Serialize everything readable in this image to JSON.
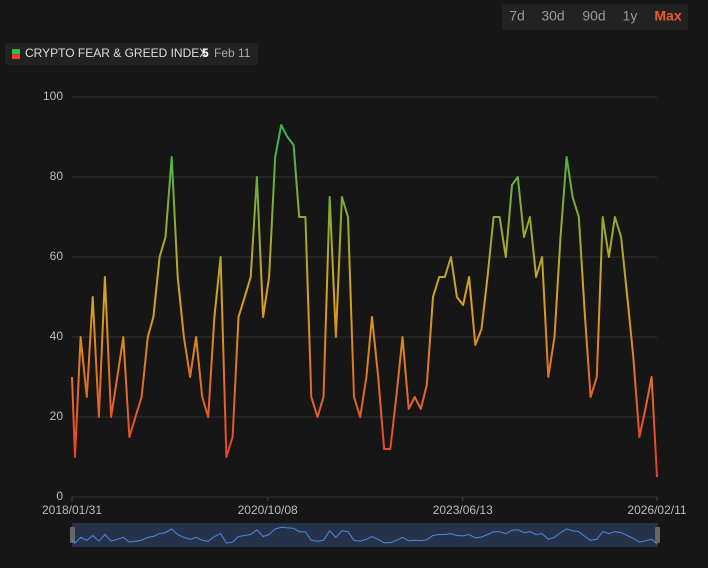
{
  "chart_data": {
    "type": "line",
    "title": "CRYPTO FEAR & GREED INDEX",
    "current_date": "Feb 11",
    "ranges": [
      "7d",
      "30d",
      "90d",
      "1y",
      "Max"
    ],
    "active_range": 4,
    "x": [
      "2018/01/31",
      "2018/02/15",
      "2018/03/15",
      "2018/04/15",
      "2018/05/15",
      "2018/06/15",
      "2018/07/15",
      "2018/08/15",
      "2018/09/15",
      "2018/10/15",
      "2018/11/15",
      "2018/12/15",
      "2019/01/15",
      "2019/02/15",
      "2019/03/15",
      "2019/04/15",
      "2019/05/15",
      "2019/06/15",
      "2019/07/15",
      "2019/08/15",
      "2019/09/15",
      "2019/10/15",
      "2019/11/15",
      "2019/12/15",
      "2020/01/15",
      "2020/02/15",
      "2020/03/15",
      "2020/04/15",
      "2020/05/15",
      "2020/06/15",
      "2020/07/15",
      "2020/08/15",
      "2020/09/15",
      "2020/10/15",
      "2020/11/15",
      "2020/12/15",
      "2021/01/15",
      "2021/02/15",
      "2021/03/15",
      "2021/04/15",
      "2021/05/15",
      "2021/06/15",
      "2021/07/15",
      "2021/08/15",
      "2021/09/15",
      "2021/10/15",
      "2021/11/15",
      "2021/12/15",
      "2022/01/15",
      "2022/02/15",
      "2022/03/15",
      "2022/04/15",
      "2022/05/15",
      "2022/06/15",
      "2022/07/15",
      "2022/08/15",
      "2022/09/15",
      "2022/10/15",
      "2022/11/15",
      "2022/12/15",
      "2023/01/15",
      "2023/02/15",
      "2023/03/15",
      "2023/04/15",
      "2023/05/15",
      "2023/06/15",
      "2023/07/15",
      "2023/08/15",
      "2023/09/15",
      "2023/10/15",
      "2023/11/15",
      "2023/12/15",
      "2024/01/15",
      "2024/02/15",
      "2024/03/15",
      "2024/04/15",
      "2024/05/15",
      "2024/06/15",
      "2024/07/15",
      "2024/08/15",
      "2024/09/15",
      "2024/10/15",
      "2024/11/15",
      "2024/12/15",
      "2025/01/15",
      "2025/02/15",
      "2025/03/15",
      "2025/04/15",
      "2025/05/15",
      "2025/06/15",
      "2025/07/15",
      "2025/08/15",
      "2025/09/15",
      "2025/10/15",
      "2025/11/15",
      "2025/12/15",
      "2026/01/15",
      "2026/02/11"
    ],
    "series": [
      {
        "name": "CRYPTO FEAR & GREED INDEX",
        "values": [
          30,
          10,
          40,
          25,
          50,
          20,
          55,
          20,
          30,
          40,
          15,
          20,
          25,
          40,
          45,
          60,
          65,
          85,
          55,
          40,
          30,
          40,
          25,
          20,
          45,
          60,
          10,
          15,
          45,
          50,
          55,
          80,
          45,
          55,
          85,
          93,
          90,
          88,
          70,
          70,
          25,
          20,
          25,
          75,
          40,
          75,
          70,
          25,
          20,
          30,
          45,
          30,
          12,
          12,
          25,
          40,
          22,
          25,
          22,
          28,
          50,
          55,
          55,
          60,
          50,
          48,
          55,
          38,
          42,
          55,
          70,
          70,
          60,
          78,
          80,
          65,
          70,
          55,
          60,
          30,
          40,
          65,
          85,
          75,
          70,
          45,
          25,
          30,
          70,
          60,
          70,
          65,
          50,
          35,
          15,
          22,
          30,
          5
        ]
      }
    ],
    "colors": {
      "high": "#3fb548",
      "mid": "#d8a21c",
      "low": "#e8422a",
      "navigator": "#4f86e0"
    },
    "xlim": [
      "2018/01/31",
      "2026/02/11"
    ],
    "xticks": [
      "2018/01/31",
      "2020/10/08",
      "2023/06/13",
      "2026/02/11"
    ],
    "ylim": [
      0,
      100
    ],
    "yticks": [
      0,
      20,
      40,
      60,
      80,
      100
    ],
    "grid": true
  }
}
